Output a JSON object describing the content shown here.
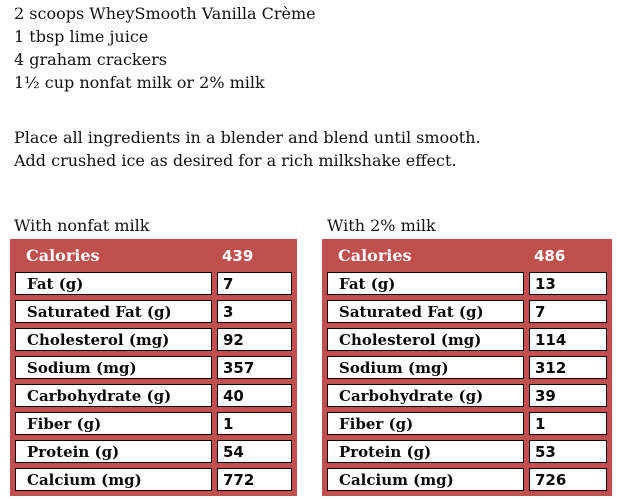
{
  "colors": {
    "table_red": "#c0504d",
    "cell_border": "#000000",
    "header_text": "#ffffff",
    "body_text": "#111111"
  },
  "ingredients": {
    "lines": [
      "2 scoops WheySmooth Vanilla Crème",
      "1 tbsp lime juice",
      "4 graham crackers",
      "1½ cup nonfat milk or 2% milk"
    ]
  },
  "instructions": {
    "lines": [
      "Place all ingredients in a blender and blend until smooth.",
      "Add crushed ice as desired for a rich milkshake effect."
    ]
  },
  "tables": [
    {
      "title": "With nonfat milk",
      "header": {
        "label": "Calories",
        "value": "439"
      },
      "rows": [
        {
          "label": "Fat (g)",
          "value": "7"
        },
        {
          "label": "Saturated Fat (g)",
          "value": "3"
        },
        {
          "label": "Cholesterol (mg)",
          "value": "92"
        },
        {
          "label": "Sodium (mg)",
          "value": "357"
        },
        {
          "label": "Carbohydrate (g)",
          "value": "40"
        },
        {
          "label": "Fiber (g)",
          "value": "1"
        },
        {
          "label": "Protein (g)",
          "value": "54"
        },
        {
          "label": "Calcium (mg)",
          "value": "772"
        }
      ]
    },
    {
      "title": "With 2% milk",
      "header": {
        "label": "Calories",
        "value": "486"
      },
      "rows": [
        {
          "label": "Fat (g)",
          "value": "13"
        },
        {
          "label": "Saturated Fat (g)",
          "value": "7"
        },
        {
          "label": "Cholesterol (mg)",
          "value": "114"
        },
        {
          "label": "Sodium (mg)",
          "value": "312"
        },
        {
          "label": "Carbohydrate (g)",
          "value": "39"
        },
        {
          "label": "Fiber (g)",
          "value": "1"
        },
        {
          "label": "Protein (g)",
          "value": "53"
        },
        {
          "label": "Calcium (mg)",
          "value": "726"
        }
      ]
    }
  ]
}
